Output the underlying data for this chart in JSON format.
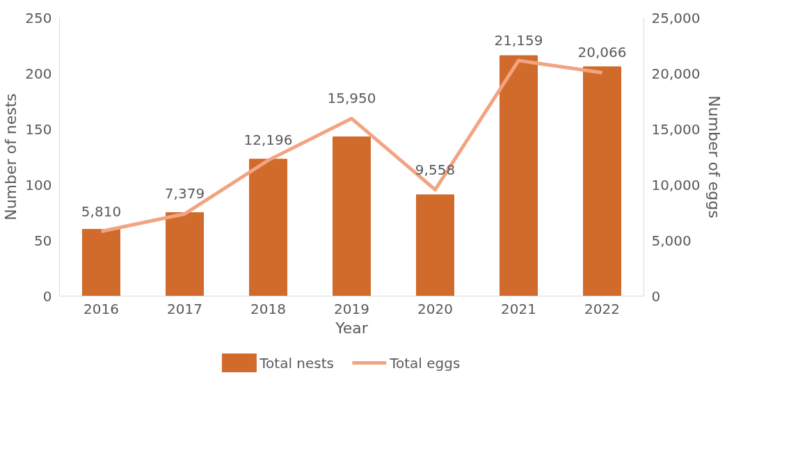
{
  "chart_data": {
    "type": "bar",
    "xlabel": "Year",
    "ylabel": "Number of nests",
    "y2label": "Number of eggs",
    "categories": [
      "2016",
      "2017",
      "2018",
      "2019",
      "2020",
      "2021",
      "2022"
    ],
    "series": [
      {
        "name": "Total nests",
        "color": "#d06b2b",
        "values": [
          60,
          75,
          123,
          143,
          91,
          216,
          206
        ]
      },
      {
        "name": "Total eggs",
        "type": "line",
        "axis": "y2",
        "color": "#f2a482",
        "values": [
          5810,
          7379,
          12196,
          15950,
          9558,
          21159,
          20066
        ],
        "value_labels": [
          "5,810",
          "7,379",
          "12,196",
          "15,950",
          "9,558",
          "21,159",
          "20,066"
        ]
      }
    ],
    "ylim": [
      0,
      250
    ],
    "yticks": [
      0,
      50,
      100,
      150,
      200,
      250
    ],
    "y2lim": [
      0,
      25000
    ],
    "y2ticks": [
      {
        "value": 0,
        "label": "0"
      },
      {
        "value": 5000,
        "label": "5,000"
      },
      {
        "value": 10000,
        "label": "10,000"
      },
      {
        "value": 15000,
        "label": "15,000"
      },
      {
        "value": 20000,
        "label": "20,000"
      },
      {
        "value": 25000,
        "label": "25,000"
      }
    ],
    "grid": false,
    "legend": "bottom"
  }
}
